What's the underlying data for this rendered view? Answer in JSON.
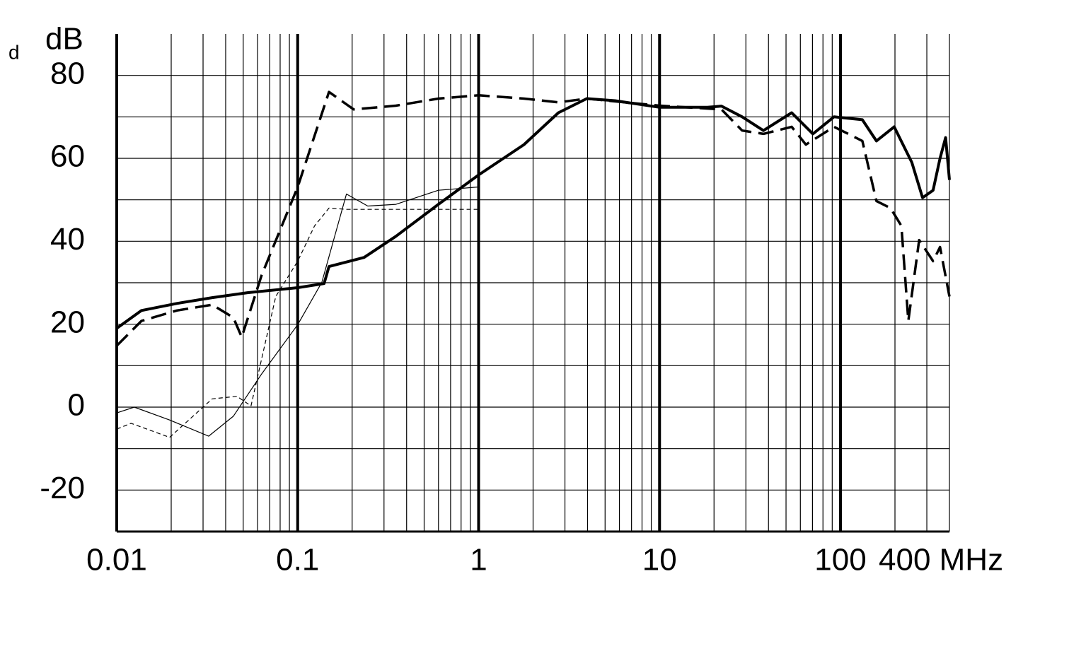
{
  "chart_data": {
    "type": "line",
    "y_label": "dB",
    "annotation": "d",
    "log_x": true,
    "grid": true,
    "xlim": [
      0.01,
      400
    ],
    "ylim": [
      -30,
      90
    ],
    "xticks": [
      0.01,
      0.1,
      1,
      10,
      100,
      {
        "value": 400,
        "label": "400 MHz"
      }
    ],
    "yticks": [
      -20,
      0,
      20,
      40,
      60,
      80
    ],
    "series": [
      {
        "color": "#000000",
        "width": 4,
        "dash": "none",
        "x": [
          0.01,
          0.0137,
          0.0215,
          0.0337,
          0.0528,
          0.1,
          0.14,
          0.149,
          0.233,
          0.349,
          0.599,
          1,
          1.78,
          2.76,
          3.96,
          5.68,
          10,
          18.4,
          22,
          28.6,
          37.5,
          53.7,
          70.4,
          92,
          132,
          158,
          198,
          248,
          284,
          325,
          355,
          381,
          400
        ],
        "values": [
          19,
          23.3,
          25,
          26.4,
          27.6,
          28.8,
          29.8,
          33.9,
          36.1,
          41.2,
          48.9,
          56,
          63.3,
          71,
          74.4,
          73.9,
          72.3,
          72.3,
          72.6,
          70,
          66.7,
          71,
          65.9,
          70,
          69.3,
          64.2,
          67.6,
          59,
          50.5,
          52.3,
          60,
          65,
          54.8
        ]
      },
      {
        "color": "#000000",
        "width": 3.5,
        "dash": "22 10",
        "x": [
          0.01,
          0.0137,
          0.0215,
          0.0337,
          0.0441,
          0.0491,
          0.0632,
          0.1,
          0.149,
          0.204,
          0.349,
          0.599,
          1,
          1.78,
          2.76,
          3.96,
          10,
          22,
          28.6,
          37.5,
          53.7,
          64.4,
          92,
          132,
          158,
          189,
          217,
          237,
          272,
          325,
          355,
          400
        ],
        "values": [
          14.8,
          20.8,
          23.3,
          24.7,
          21.6,
          16.9,
          31.8,
          53.1,
          76,
          71.8,
          72.7,
          74.4,
          75.2,
          74.4,
          73.5,
          74.4,
          72.7,
          71.8,
          66.7,
          65.9,
          67.6,
          63.3,
          67.6,
          64.2,
          49.7,
          48,
          43.7,
          20.8,
          40.3,
          35.2,
          38.6,
          26.7
        ]
      },
      {
        "color": "#000000",
        "width": 1.2,
        "dash": "none",
        "x": [
          0.01,
          0.0125,
          0.0196,
          0.0322,
          0.0441,
          0.0632,
          0.1,
          0.136,
          0.186,
          0.244,
          0.349,
          0.599,
          1
        ],
        "values": [
          -1.4,
          0,
          -3.1,
          -7,
          -2.2,
          8,
          19.9,
          30.1,
          51.4,
          48.5,
          48.9,
          52.3,
          53.1
        ]
      },
      {
        "color": "#000000",
        "width": 1.2,
        "dash": "6 4",
        "x": [
          0.01,
          0.012,
          0.0196,
          0.0337,
          0.0461,
          0.0552,
          0.0757,
          0.1,
          0.124,
          0.149,
          0.186,
          1
        ],
        "values": [
          -5.3,
          -3.9,
          -7.3,
          2,
          2.6,
          0.3,
          26.7,
          35.2,
          43.7,
          48,
          47.7,
          47.7
        ]
      }
    ]
  }
}
